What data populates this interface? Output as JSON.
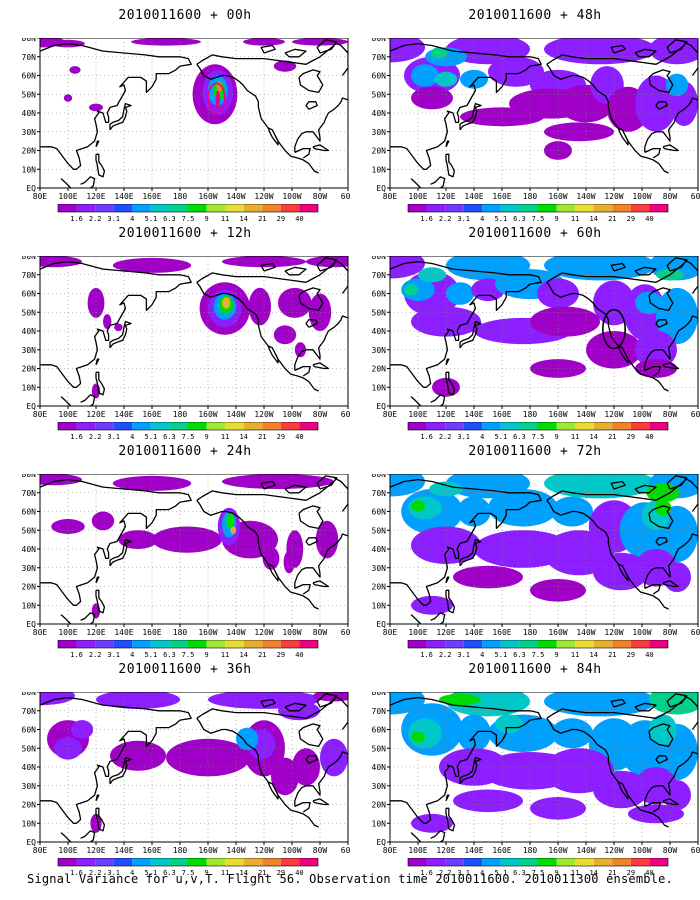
{
  "chart_data": {
    "type": "heatmap",
    "caption": "Signal Variance for u,v,T. Flight 56. Observation time 2010011600. 2010011300 ensemble.",
    "colorbar": {
      "levels": [
        "1.6",
        "2.2",
        "3.1",
        "4",
        "5.1",
        "6.3",
        "7.5",
        "9",
        "11",
        "14",
        "21",
        "29",
        "40"
      ],
      "colors": [
        "#a000c8",
        "#8c1eff",
        "#6e3cff",
        "#1e50ff",
        "#00a0ff",
        "#00c8c8",
        "#00d28c",
        "#00dc00",
        "#a0e632",
        "#e6dc32",
        "#e6af2d",
        "#f08228",
        "#fa3c3c",
        "#f00082"
      ]
    },
    "x_ticks": [
      "80E",
      "100E",
      "120E",
      "140E",
      "160E",
      "180",
      "160W",
      "140W",
      "120W",
      "100W",
      "80W",
      "60W"
    ],
    "y_ticks": [
      "EQ",
      "10N",
      "20N",
      "30N",
      "40N",
      "50N",
      "60N",
      "70N",
      "80N"
    ],
    "panels": [
      {
        "title": "2010011600 + 00h",
        "lead_hours": 0
      },
      {
        "title": "2010011600 + 48h",
        "lead_hours": 48
      },
      {
        "title": "2010011600 + 12h",
        "lead_hours": 12
      },
      {
        "title": "2010011600 + 60h",
        "lead_hours": 60
      },
      {
        "title": "2010011600 + 24h",
        "lead_hours": 24
      },
      {
        "title": "2010011600 + 72h",
        "lead_hours": 72
      },
      {
        "title": "2010011600 + 36h",
        "lead_hours": 36
      },
      {
        "title": "2010011600 + 84h",
        "lead_hours": 84
      }
    ],
    "grid": true,
    "legend_position": "bottom"
  }
}
